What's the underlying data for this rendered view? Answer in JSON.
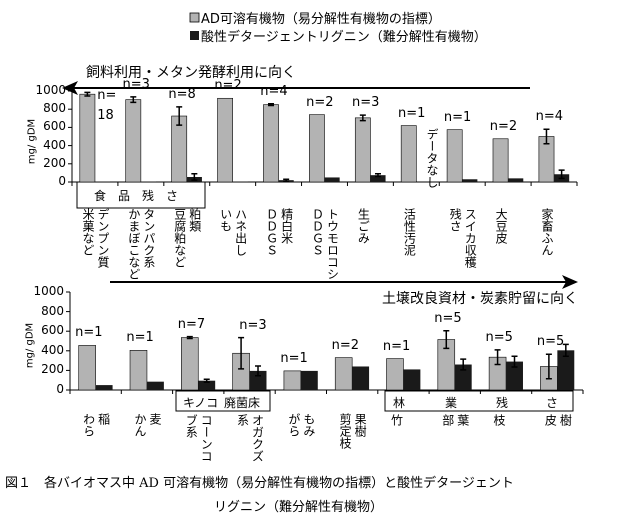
{
  "legend": {
    "ad": "AD可溶有機物（易分解性有機物の指標）",
    "adl": "酸性デタージェントリグニン（難分解性有機物）"
  },
  "colors": {
    "ad": "#b3b3b3",
    "adl": "#1a1a1a"
  },
  "chart_data": [
    {
      "type": "bar",
      "ylabel": "mg/ gDM",
      "ylim": [
        0,
        1000
      ],
      "yticks": [
        0,
        200,
        400,
        600,
        800,
        1000
      ],
      "arrow": {
        "direction": "left",
        "text": "飼料利用・メタン発酵利用に向く"
      },
      "group_box": {
        "text": "食　品　残　さ"
      },
      "categories": [
        "デンプン質\n米菓など",
        "タンパク系\nかまぼこなど",
        "粕類\n豆腐粕など",
        "ハネ出し\nいも",
        "精白米\nＤＤＧＳ",
        "トウモロコシ\nＤＤＧＳ",
        "生ごみ",
        "活性汚泥",
        "スイカ収穫\n残さ",
        "大豆皮",
        "家畜ふん"
      ],
      "n_labels": [
        "n=\n18",
        "n=3",
        "n=8",
        "n=2",
        "n=4",
        "n=2",
        "n=3",
        "n=1",
        "n=1",
        "n=2",
        "n=4"
      ],
      "note": "データなし",
      "series": [
        {
          "name": "AD可溶有機物（易分解性有機物の指標）",
          "values": [
            965,
            905,
            725,
            920,
            850,
            740,
            705,
            620,
            575,
            475,
            500
          ],
          "errors": [
            20,
            30,
            100,
            null,
            10,
            null,
            30,
            null,
            null,
            null,
            80
          ]
        },
        {
          "name": "酸性デタージェントリグニン（難分解性有機物）",
          "values": [
            5,
            5,
            55,
            5,
            20,
            50,
            75,
            null,
            30,
            40,
            85
          ],
          "errors": [
            null,
            null,
            35,
            null,
            10,
            null,
            15,
            null,
            null,
            null,
            45
          ]
        }
      ]
    },
    {
      "type": "bar",
      "ylabel": "mg/ gDM",
      "ylim": [
        0,
        1000
      ],
      "yticks": [
        0,
        200,
        400,
        600,
        800,
        1000
      ],
      "arrow": {
        "direction": "right",
        "text": "土壌改良資材・炭素貯留に向く"
      },
      "group_boxes": [
        {
          "text": "キノコ",
          "text2": "廃菌床"
        },
        {
          "text": [
            "林",
            "業",
            "残",
            "さ"
          ]
        }
      ],
      "categories": [
        "稲\nわら",
        "麦\nかん",
        "コーンコ\nブ系",
        "オガクズ\n系",
        "もみ\nがら",
        "果樹\n剪定枝",
        "竹",
        "葉\n部",
        "枝",
        "樹\n皮"
      ],
      "n_labels": [
        "n=1",
        "n=1",
        "n=7",
        "n=3",
        "n=1",
        "n=2",
        "n=1",
        "n=5",
        "n=5",
        "n=5"
      ],
      "series": [
        {
          "name": "AD可溶有機物（易分解性有機物の指標）",
          "values": [
            455,
            405,
            535,
            375,
            195,
            330,
            320,
            515,
            335,
            240
          ],
          "errors": [
            null,
            null,
            10,
            160,
            null,
            null,
            null,
            90,
            75,
            125
          ]
        },
        {
          "name": "酸性デタージェントリグニン（難分解性有機物）",
          "values": [
            50,
            85,
            95,
            195,
            195,
            240,
            210,
            260,
            290,
            405
          ],
          "errors": [
            null,
            null,
            15,
            50,
            null,
            null,
            null,
            55,
            55,
            60
          ]
        }
      ]
    }
  ],
  "caption": {
    "line1": "図１　各バイオマス中 AD 可溶有機物（易分解性有機物の指標）と酸性デタージェント",
    "line2": "リグニン（難分解性有機物）"
  }
}
